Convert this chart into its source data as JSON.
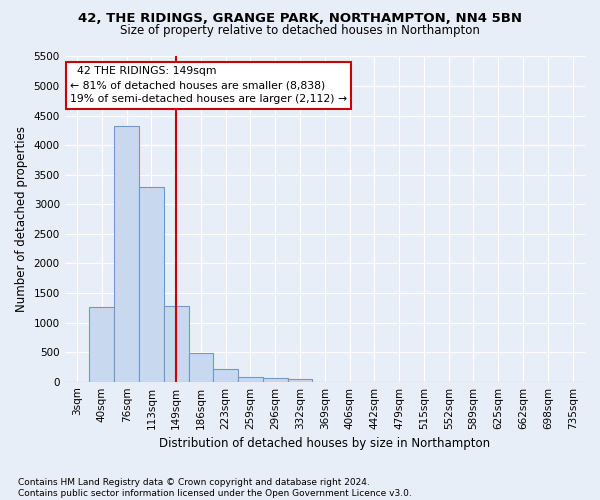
{
  "title1": "42, THE RIDINGS, GRANGE PARK, NORTHAMPTON, NN4 5BN",
  "title2": "Size of property relative to detached houses in Northampton",
  "xlabel": "Distribution of detached houses by size in Northampton",
  "ylabel": "Number of detached properties",
  "bar_labels": [
    "3sqm",
    "40sqm",
    "76sqm",
    "113sqm",
    "149sqm",
    "186sqm",
    "223sqm",
    "259sqm",
    "296sqm",
    "332sqm",
    "369sqm",
    "406sqm",
    "442sqm",
    "479sqm",
    "515sqm",
    "552sqm",
    "589sqm",
    "625sqm",
    "662sqm",
    "698sqm",
    "735sqm"
  ],
  "bar_values": [
    0,
    1260,
    4330,
    3290,
    1280,
    480,
    210,
    80,
    60,
    45,
    0,
    0,
    0,
    0,
    0,
    0,
    0,
    0,
    0,
    0,
    0
  ],
  "bar_color": "#c8d8ee",
  "bar_edge_color": "#7098c8",
  "vline_x": 4,
  "vline_color": "#cc0000",
  "annotation_text": "  42 THE RIDINGS: 149sqm  \n← 81% of detached houses are smaller (8,838)\n19% of semi-detached houses are larger (2,112) →",
  "annotation_box_color": "#ffffff",
  "annotation_box_edge": "#cc0000",
  "ylim": [
    0,
    5500
  ],
  "yticks": [
    0,
    500,
    1000,
    1500,
    2000,
    2500,
    3000,
    3500,
    4000,
    4500,
    5000,
    5500
  ],
  "footnote": "Contains HM Land Registry data © Crown copyright and database right 2024.\nContains public sector information licensed under the Open Government Licence v3.0.",
  "bg_color": "#e8eef8",
  "plot_bg_color": "#e8eef8",
  "grid_color": "#ffffff",
  "title1_fontsize": 9.5,
  "title2_fontsize": 8.5,
  "tick_fontsize": 7.5,
  "label_fontsize": 8.5,
  "annot_fontsize": 7.8,
  "footnote_fontsize": 6.5
}
